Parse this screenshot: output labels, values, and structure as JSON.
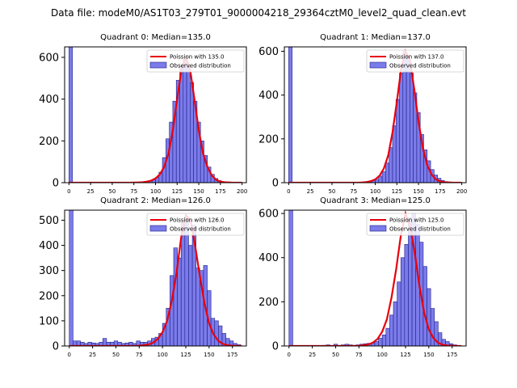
{
  "figure": {
    "suptitle": "Data file: modeM0/AS1T03_279T01_9000004218_29364cztM0_level2_quad_clean.evt"
  },
  "colors": {
    "bar_fill": "#7b7bea",
    "bar_edge": "#1f1f8a",
    "curve": "#e8000b",
    "axis": "#000000"
  },
  "chart_data": [
    {
      "type": "bar",
      "title": "Quadrant 0: Median=135.0",
      "median": 135.0,
      "bin_width": 4,
      "xlim": [
        -5,
        205
      ],
      "ylim": [
        0,
        650
      ],
      "xticks": [
        0,
        25,
        50,
        75,
        100,
        125,
        150,
        175,
        200
      ],
      "yticks": [
        0,
        200,
        400,
        600
      ],
      "legend": [
        "Poission with 135.0",
        "Observed distribution"
      ],
      "legend_loc": "upper right",
      "series": [
        {
          "name": "Observed distribution",
          "type": "histogram",
          "bin_starts": [
            0,
            4,
            8,
            12,
            16,
            20,
            24,
            28,
            32,
            36,
            40,
            44,
            48,
            52,
            56,
            60,
            64,
            68,
            72,
            76,
            80,
            84,
            88,
            92,
            96,
            100,
            104,
            108,
            112,
            116,
            120,
            124,
            128,
            132,
            136,
            140,
            144,
            148,
            152,
            156,
            160,
            164,
            168,
            172,
            176,
            180,
            184,
            188,
            192,
            196
          ],
          "values": [
            650,
            0,
            0,
            0,
            0,
            0,
            0,
            0,
            0,
            0,
            0,
            0,
            0,
            0,
            0,
            0,
            0,
            0,
            0,
            0,
            2,
            3,
            5,
            10,
            15,
            25,
            50,
            120,
            210,
            290,
            390,
            490,
            560,
            590,
            560,
            480,
            390,
            290,
            200,
            130,
            75,
            40,
            20,
            10,
            5,
            3,
            2,
            1,
            0,
            0
          ]
        },
        {
          "name": "Poission with 135.0",
          "type": "line",
          "x": [
            0,
            10,
            20,
            30,
            40,
            50,
            60,
            70,
            80,
            85,
            90,
            95,
            100,
            105,
            110,
            115,
            120,
            125,
            130,
            135,
            140,
            145,
            150,
            155,
            160,
            165,
            170,
            175,
            180,
            185,
            190,
            200
          ],
          "y": [
            0,
            0,
            0,
            0,
            0,
            0,
            0,
            0,
            1,
            2,
            5,
            10,
            20,
            40,
            75,
            140,
            250,
            400,
            540,
            600,
            540,
            400,
            250,
            140,
            75,
            35,
            14,
            5,
            2,
            1,
            0,
            0
          ]
        }
      ]
    },
    {
      "type": "bar",
      "title": "Quadrant 1: Median=137.0",
      "median": 137.0,
      "bin_width": 4,
      "xlim": [
        -5,
        205
      ],
      "ylim": [
        0,
        620
      ],
      "xticks": [
        0,
        25,
        50,
        75,
        100,
        125,
        150,
        175,
        200
      ],
      "yticks": [
        0,
        200,
        400,
        600
      ],
      "legend": [
        "Poission with 137.0",
        "Observed distribution"
      ],
      "legend_loc": "upper right",
      "series": [
        {
          "name": "Observed distribution",
          "type": "histogram",
          "bin_starts": [
            0,
            4,
            8,
            12,
            16,
            20,
            24,
            28,
            32,
            36,
            40,
            44,
            48,
            52,
            56,
            60,
            64,
            68,
            72,
            76,
            80,
            84,
            88,
            92,
            96,
            100,
            104,
            108,
            112,
            116,
            120,
            124,
            128,
            132,
            136,
            140,
            144,
            148,
            152,
            156,
            160,
            164,
            168,
            172,
            176,
            180,
            184,
            188,
            192,
            196
          ],
          "values": [
            620,
            0,
            0,
            0,
            0,
            0,
            0,
            0,
            0,
            0,
            0,
            0,
            0,
            0,
            0,
            0,
            0,
            0,
            0,
            0,
            0,
            0,
            2,
            5,
            10,
            15,
            30,
            50,
            90,
            160,
            260,
            380,
            500,
            600,
            580,
            500,
            410,
            320,
            220,
            150,
            100,
            60,
            35,
            20,
            10,
            5,
            3,
            1,
            0,
            0
          ]
        },
        {
          "name": "Poission with 137.0",
          "type": "line",
          "x": [
            0,
            10,
            20,
            30,
            40,
            50,
            60,
            70,
            80,
            85,
            90,
            95,
            100,
            105,
            110,
            115,
            120,
            125,
            130,
            135,
            140,
            145,
            150,
            155,
            160,
            165,
            170,
            175,
            180,
            185,
            190,
            200
          ],
          "y": [
            0,
            0,
            0,
            0,
            0,
            0,
            0,
            0,
            0,
            1,
            3,
            7,
            15,
            32,
            65,
            125,
            230,
            370,
            520,
            600,
            560,
            430,
            280,
            160,
            80,
            38,
            15,
            6,
            2,
            1,
            0,
            0
          ]
        }
      ]
    },
    {
      "type": "bar",
      "title": "Quadrant 2: Median=126.0",
      "median": 126.0,
      "bin_width": 4,
      "xlim": [
        -5,
        190
      ],
      "ylim": [
        0,
        540
      ],
      "xticks": [
        0,
        25,
        50,
        75,
        100,
        125,
        150,
        175
      ],
      "yticks": [
        0,
        100,
        200,
        300,
        400,
        500
      ],
      "legend": [
        "Poission with 126.0",
        "Observed distribution"
      ],
      "legend_loc": "upper right",
      "series": [
        {
          "name": "Observed distribution",
          "type": "histogram",
          "bin_starts": [
            0,
            4,
            8,
            12,
            16,
            20,
            24,
            28,
            32,
            36,
            40,
            44,
            48,
            52,
            56,
            60,
            64,
            68,
            72,
            76,
            80,
            84,
            88,
            92,
            96,
            100,
            104,
            108,
            112,
            116,
            120,
            124,
            128,
            132,
            136,
            140,
            144,
            148,
            152,
            156,
            160,
            164,
            168,
            172,
            176,
            180
          ],
          "values": [
            540,
            20,
            20,
            15,
            10,
            15,
            12,
            10,
            15,
            30,
            15,
            15,
            20,
            15,
            10,
            12,
            15,
            10,
            20,
            15,
            15,
            20,
            30,
            35,
            50,
            90,
            150,
            280,
            390,
            350,
            490,
            510,
            400,
            480,
            310,
            300,
            320,
            220,
            110,
            100,
            80,
            50,
            30,
            20,
            10,
            5
          ]
        },
        {
          "name": "Poission with 126.0",
          "type": "line",
          "x": [
            0,
            10,
            20,
            30,
            40,
            50,
            60,
            70,
            75,
            80,
            85,
            90,
            95,
            100,
            105,
            110,
            115,
            120,
            125,
            130,
            135,
            140,
            145,
            150,
            155,
            160,
            165,
            170,
            175,
            180,
            185
          ],
          "y": [
            0,
            0,
            0,
            0,
            0,
            0,
            0,
            0,
            1,
            3,
            6,
            13,
            28,
            55,
            100,
            180,
            290,
            430,
            520,
            500,
            400,
            280,
            170,
            90,
            45,
            20,
            8,
            3,
            1,
            0,
            0
          ]
        }
      ]
    },
    {
      "type": "bar",
      "title": "Quadrant 3: Median=125.0",
      "median": 125.0,
      "bin_width": 4,
      "xlim": [
        -5,
        190
      ],
      "ylim": [
        0,
        615
      ],
      "xticks": [
        0,
        25,
        50,
        75,
        100,
        125,
        150,
        175
      ],
      "yticks": [
        0,
        200,
        400,
        600
      ],
      "legend": [
        "Poission with 125.0",
        "Observed distribution"
      ],
      "legend_loc": "upper right",
      "series": [
        {
          "name": "Observed distribution",
          "type": "histogram",
          "bin_starts": [
            0,
            4,
            8,
            12,
            16,
            20,
            24,
            28,
            32,
            36,
            40,
            44,
            48,
            52,
            56,
            60,
            64,
            68,
            72,
            76,
            80,
            84,
            88,
            92,
            96,
            100,
            104,
            108,
            112,
            116,
            120,
            124,
            128,
            132,
            136,
            140,
            144,
            148,
            152,
            156,
            160,
            164,
            168,
            172,
            176,
            180
          ],
          "values": [
            615,
            0,
            0,
            0,
            0,
            0,
            0,
            0,
            2,
            3,
            5,
            2,
            8,
            3,
            5,
            8,
            5,
            3,
            5,
            8,
            10,
            12,
            15,
            20,
            35,
            50,
            80,
            140,
            200,
            290,
            400,
            460,
            580,
            600,
            550,
            470,
            360,
            260,
            170,
            110,
            60,
            30,
            20,
            10,
            5,
            2
          ]
        },
        {
          "name": "Poission with 125.0",
          "type": "line",
          "x": [
            0,
            10,
            20,
            30,
            40,
            50,
            60,
            70,
            75,
            80,
            85,
            90,
            95,
            100,
            105,
            110,
            115,
            120,
            125,
            130,
            135,
            140,
            145,
            150,
            155,
            160,
            165,
            170,
            175,
            180,
            185
          ],
          "y": [
            0,
            0,
            0,
            0,
            0,
            0,
            0,
            0,
            1,
            3,
            7,
            15,
            32,
            65,
            120,
            220,
            350,
            500,
            600,
            540,
            420,
            270,
            150,
            75,
            35,
            14,
            5,
            2,
            1,
            0,
            0
          ]
        }
      ]
    }
  ]
}
